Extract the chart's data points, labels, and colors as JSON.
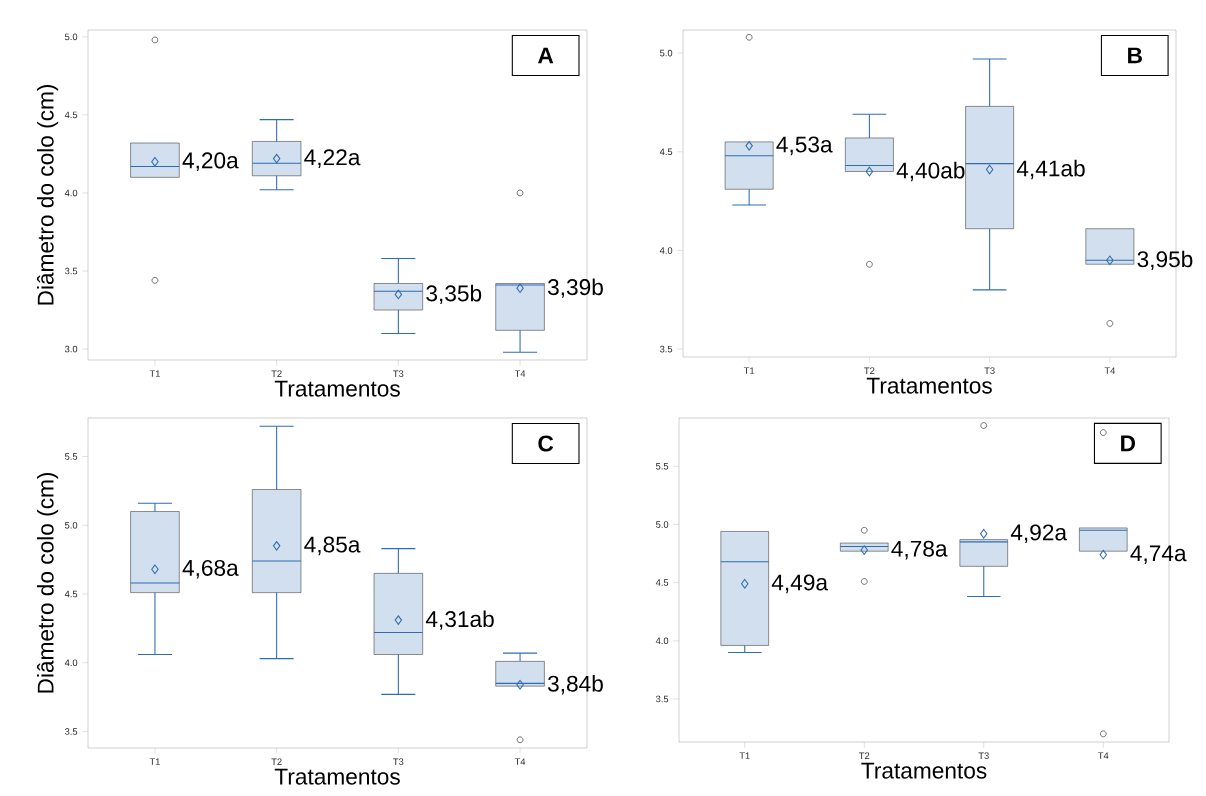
{
  "chart_data": [
    {
      "type": "box",
      "categories": [
        "T1",
        "T2",
        "T3",
        "T4"
      ],
      "xlabel": "Tratamentos",
      "ylabel": "Diâmetro do colo (cm)",
      "ylim": [
        2.93,
        5.044
      ],
      "yticks": [
        {
          "value": 3,
          "label": "3.0"
        },
        {
          "value": 3.5,
          "label": "3.5"
        },
        {
          "value": 4,
          "label": "4.0"
        },
        {
          "value": 4.5,
          "label": "4.5"
        },
        {
          "value": 5,
          "label": "5.0"
        }
      ],
      "series": [
        {
          "color": "#d1dfee",
          "boxes": [
            {
              "low": 4.1,
              "q1": 4.1,
              "median": 4.17,
              "q3": 4.32,
              "high": 4.32,
              "mean": 4.2,
              "outliers": [
                4.98,
                3.44
              ]
            },
            {
              "low": 4.02,
              "q1": 4.11,
              "median": 4.19,
              "q3": 4.33,
              "high": 4.47,
              "mean": 4.22
            },
            {
              "low": 3.1,
              "q1": 3.25,
              "median": 3.37,
              "q3": 3.42,
              "high": 3.58,
              "mean": 3.35
            },
            {
              "low": 2.98,
              "q1": 3.12,
              "median": 3.41,
              "q3": 3.42,
              "high": 3.42,
              "mean": 3.39,
              "outliers": [
                4.0
              ]
            }
          ]
        }
      ],
      "annotations": [
        "A",
        "4,20a",
        "4,22a",
        "3,35b",
        "3,39b"
      ]
    },
    {
      "type": "box",
      "categories": [
        "T1",
        "T2",
        "T3",
        "T4"
      ],
      "xlabel": "Tratamentos",
      "ylim": [
        3.46,
        5.117
      ],
      "yticks": [
        {
          "value": 3.5,
          "label": "3.5"
        },
        {
          "value": 4,
          "label": "4.0"
        },
        {
          "value": 4.5,
          "label": "4.5"
        },
        {
          "value": 5,
          "label": "5.0"
        }
      ],
      "series": [
        {
          "color": "#d1dfee",
          "boxes": [
            {
              "low": 4.23,
              "q1": 4.31,
              "median": 4.48,
              "q3": 4.55,
              "high": 4.55,
              "mean": 4.53,
              "outliers": [
                5.08
              ]
            },
            {
              "low": 4.4,
              "q1": 4.4,
              "median": 4.43,
              "q3": 4.57,
              "high": 4.69,
              "mean": 4.4,
              "outliers": [
                3.93
              ]
            },
            {
              "low": 3.8,
              "q1": 4.11,
              "median": 4.44,
              "q3": 4.73,
              "high": 4.97,
              "mean": 4.41
            },
            {
              "low": 3.93,
              "q1": 3.93,
              "median": 3.95,
              "q3": 4.11,
              "high": 4.11,
              "mean": 3.95,
              "outliers": [
                3.63
              ]
            }
          ]
        }
      ],
      "annotations": [
        "B",
        "4,53a",
        "4,40ab",
        "4,41ab",
        "3,95b"
      ]
    },
    {
      "type": "box",
      "categories": [
        "T1",
        "T2",
        "T3",
        "T4"
      ],
      "xlabel": "Tratamentos",
      "ylabel": "Diâmetro do colo (cm)",
      "ylim": [
        3.38,
        5.78
      ],
      "yticks": [
        {
          "value": 3.5,
          "label": "3.5"
        },
        {
          "value": 4,
          "label": "4.0"
        },
        {
          "value": 4.5,
          "label": "4.5"
        },
        {
          "value": 5,
          "label": "5.0"
        },
        {
          "value": 5.5,
          "label": "5.5"
        }
      ],
      "series": [
        {
          "color": "#d1dfee",
          "boxes": [
            {
              "low": 4.06,
              "q1": 4.51,
              "median": 4.58,
              "q3": 5.1,
              "high": 5.16,
              "mean": 4.68
            },
            {
              "low": 4.03,
              "q1": 4.51,
              "median": 4.74,
              "q3": 5.26,
              "high": 5.72,
              "mean": 4.85
            },
            {
              "low": 3.77,
              "q1": 4.06,
              "median": 4.22,
              "q3": 4.65,
              "high": 4.83,
              "mean": 4.31
            },
            {
              "low": 3.83,
              "q1": 3.83,
              "median": 3.85,
              "q3": 4.01,
              "high": 4.07,
              "mean": 3.84,
              "outliers": [
                3.44
              ]
            }
          ]
        }
      ],
      "annotations": [
        "C",
        "4,68a",
        "4,85a",
        "4,31ab",
        "3,84b"
      ]
    },
    {
      "type": "box",
      "categories": [
        "T1",
        "T2",
        "T3",
        "T4"
      ],
      "xlabel": "Tratamentos",
      "ylim": [
        3.13,
        5.915
      ],
      "yticks": [
        {
          "value": 3.5,
          "label": "3.5"
        },
        {
          "value": 4,
          "label": "4.0"
        },
        {
          "value": 4.5,
          "label": "4.5"
        },
        {
          "value": 5,
          "label": "5.0"
        },
        {
          "value": 5.5,
          "label": "5.5"
        }
      ],
      "series": [
        {
          "color": "#d1dfee",
          "boxes": [
            {
              "low": 3.9,
              "q1": 3.96,
              "median": 4.68,
              "q3": 4.94,
              "high": 4.94,
              "mean": 4.49
            },
            {
              "low": 4.77,
              "q1": 4.77,
              "median": 4.81,
              "q3": 4.84,
              "high": 4.84,
              "mean": 4.78,
              "outliers": [
                4.95,
                4.51
              ]
            },
            {
              "low": 4.38,
              "q1": 4.64,
              "median": 4.85,
              "q3": 4.87,
              "high": 4.87,
              "mean": 4.92,
              "outliers": [
                5.85
              ]
            },
            {
              "low": 4.77,
              "q1": 4.77,
              "median": 4.95,
              "q3": 4.97,
              "high": 4.97,
              "mean": 4.74,
              "outliers": [
                5.79,
                3.2
              ]
            }
          ]
        }
      ],
      "annotations": [
        "D",
        "4,49a",
        "4,78a",
        "4,92a",
        "4,74a"
      ]
    }
  ]
}
